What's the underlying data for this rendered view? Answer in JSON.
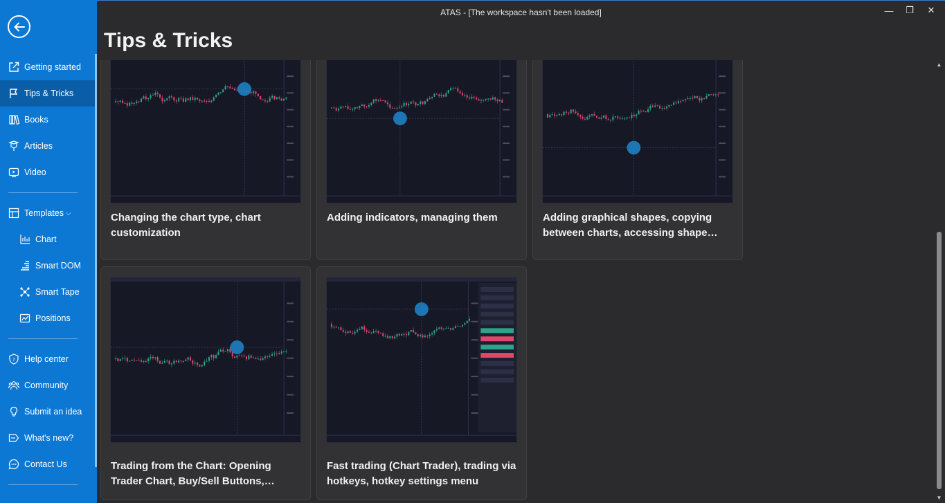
{
  "window": {
    "title": "ATAS - [The workspace hasn't been loaded]",
    "controls": {
      "minimize": "—",
      "restore": "❐",
      "close": "✕"
    }
  },
  "page_title": "Tips & Tricks",
  "sidebar": {
    "back_icon": "arrow-left-icon",
    "items": [
      {
        "label": "Getting started",
        "icon": "external-link-icon"
      },
      {
        "label": "Tips & Tricks",
        "icon": "flag-icon",
        "active": true
      },
      {
        "label": "Books",
        "icon": "books-icon"
      },
      {
        "label": "Articles",
        "icon": "articles-icon"
      },
      {
        "label": "Video",
        "icon": "video-icon"
      },
      {
        "label": "Templates",
        "icon": "templates-icon",
        "chevron": "⌵"
      },
      {
        "label": "Chart",
        "icon": "chart-icon"
      },
      {
        "label": "Smart DOM",
        "icon": "smart-dom-icon"
      },
      {
        "label": "Smart Tape",
        "icon": "smart-tape-icon"
      },
      {
        "label": "Positions",
        "icon": "positions-icon"
      },
      {
        "label": "Help center",
        "icon": "shield-icon"
      },
      {
        "label": "Community",
        "icon": "community-icon"
      },
      {
        "label": "Submit an idea",
        "icon": "lightbulb-icon"
      },
      {
        "label": "What's new?",
        "icon": "megaphone-icon"
      },
      {
        "label": "Contact Us",
        "icon": "chat-icon"
      }
    ]
  },
  "cards": [
    {
      "title": "Changing the chart type, chart customization"
    },
    {
      "title": "Adding indicators, managing them"
    },
    {
      "title": "Adding graphical shapes, copying between charts, accessing shape settings"
    },
    {
      "title": "Trading from the Chart: Opening Trader Chart, Buy/Sell Buttons, Placing orders"
    },
    {
      "title": "Fast trading (Chart Trader), trading via hotkeys, hotkey settings menu"
    }
  ],
  "colors": {
    "sidebar": "#0c78d4",
    "sidebar_active": "#0a5ea8",
    "background": "#2b2b2d",
    "card": "#323235",
    "chart_bg": "#161826",
    "candle_up": "#2ea58a",
    "candle_down": "#e0486b",
    "cursor_dot": "#1e7fc4"
  }
}
